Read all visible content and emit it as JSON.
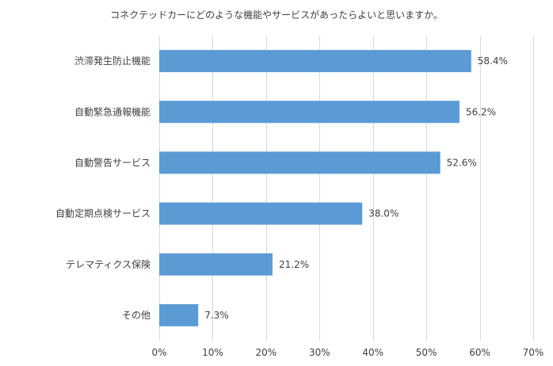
{
  "chart_data": {
    "type": "bar",
    "orientation": "horizontal",
    "title": "コネクテッドカーにどのような機能やサービスがあったらよいと思いますか。",
    "categories": [
      "渋滞発生防止機能",
      "自動緊急通報機能",
      "自動警告サービス",
      "自動定期点検サービス",
      "テレマティクス保険",
      "その他"
    ],
    "values": [
      58.4,
      56.2,
      52.6,
      38.0,
      21.2,
      7.3
    ],
    "value_labels": [
      "58.4%",
      "56.2%",
      "52.6%",
      "38.0%",
      "21.2%",
      "7.3%"
    ],
    "xlim": [
      0,
      70
    ],
    "xticks": [
      0,
      10,
      20,
      30,
      40,
      50,
      60,
      70
    ],
    "xtick_labels": [
      "0%",
      "10%",
      "20%",
      "30%",
      "40%",
      "50%",
      "60%",
      "70%"
    ],
    "xlabel": "",
    "ylabel": "",
    "grid": "vertical",
    "legend": "none",
    "bar_color": "#5b9bd5",
    "grid_color": "#d9d9d9"
  }
}
